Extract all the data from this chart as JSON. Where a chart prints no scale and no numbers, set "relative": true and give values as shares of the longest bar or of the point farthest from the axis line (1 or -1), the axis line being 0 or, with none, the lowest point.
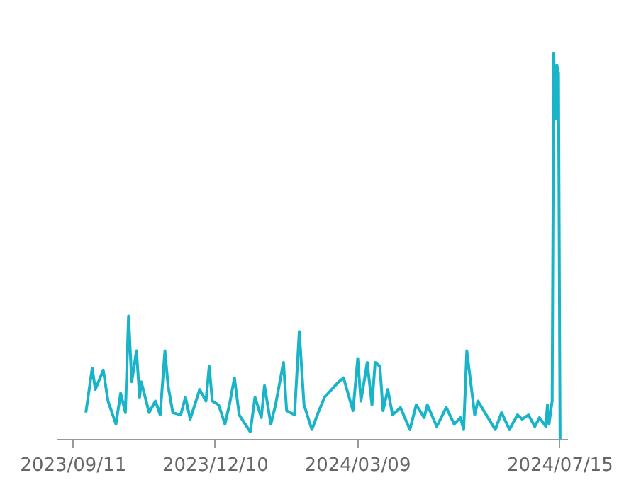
{
  "chart_data": {
    "type": "line",
    "relative": true,
    "color": "#19b4c8",
    "xlim": [
      "2023-09-01",
      "2024-07-20"
    ],
    "xticks": [
      {
        "value": "2023-09-11",
        "label": "2023/09/11"
      },
      {
        "value": "2023-12-10",
        "label": "2023/12/10"
      },
      {
        "value": "2024-03-09",
        "label": "2024/03/09"
      },
      {
        "value": "2024-07-15",
        "label": "2024/07/15"
      }
    ],
    "x": [
      "2023-09-19",
      "2023-09-23",
      "2023-09-25",
      "2023-09-30",
      "2023-10-03",
      "2023-10-08",
      "2023-10-11",
      "2023-10-14",
      "2023-10-16",
      "2023-10-18",
      "2023-10-21",
      "2023-10-23",
      "2023-10-24",
      "2023-10-29",
      "2023-11-02",
      "2023-11-05",
      "2023-11-08",
      "2023-11-10",
      "2023-11-13",
      "2023-11-18",
      "2023-11-21",
      "2023-11-24",
      "2023-11-30",
      "2023-12-04",
      "2023-12-06",
      "2023-12-08",
      "2023-12-12",
      "2023-12-16",
      "2023-12-19",
      "2023-12-22",
      "2023-12-25",
      "2024-01-01",
      "2024-01-04",
      "2024-01-08",
      "2024-01-10",
      "2024-01-14",
      "2024-01-17",
      "2024-01-22",
      "2024-01-24",
      "2024-01-29",
      "2024-02-01",
      "2024-02-04",
      "2024-02-09",
      "2024-02-13",
      "2024-02-17",
      "2024-02-26",
      "2024-02-29",
      "2024-03-06",
      "2024-03-09",
      "2024-03-11",
      "2024-03-15",
      "2024-03-18",
      "2024-03-20",
      "2024-03-23",
      "2024-03-25",
      "2024-03-28",
      "2024-03-31",
      "2024-04-05",
      "2024-04-11",
      "2024-04-15",
      "2024-04-20",
      "2024-04-22",
      "2024-04-28",
      "2024-05-04",
      "2024-05-09",
      "2024-05-13",
      "2024-05-15",
      "2024-05-17",
      "2024-05-22",
      "2024-05-24",
      "2024-05-31",
      "2024-06-04",
      "2024-06-08",
      "2024-06-13",
      "2024-06-18",
      "2024-06-21",
      "2024-06-25",
      "2024-06-29",
      "2024-07-02",
      "2024-07-06",
      "2024-07-07",
      "2024-07-08",
      "2024-07-10",
      "2024-07-11",
      "2024-07-12",
      "2024-07-13",
      "2024-07-14",
      "2024-07-15"
    ],
    "values": [
      0.07,
      0.185,
      0.13,
      0.18,
      0.1,
      0.04,
      0.12,
      0.07,
      0.32,
      0.15,
      0.23,
      0.11,
      0.15,
      0.07,
      0.1,
      0.064,
      0.23,
      0.14,
      0.07,
      0.064,
      0.11,
      0.053,
      0.13,
      0.1,
      0.19,
      0.1,
      0.09,
      0.04,
      0.094,
      0.16,
      0.064,
      0.02,
      0.11,
      0.057,
      0.14,
      0.04,
      0.09,
      0.2,
      0.075,
      0.064,
      0.28,
      0.09,
      0.026,
      0.07,
      0.11,
      0.15,
      0.16,
      0.075,
      0.21,
      0.1,
      0.2,
      0.09,
      0.2,
      0.19,
      0.075,
      0.13,
      0.064,
      0.083,
      0.026,
      0.09,
      0.057,
      0.09,
      0.034,
      0.083,
      0.04,
      0.057,
      0.026,
      0.23,
      0.064,
      0.1,
      0.053,
      0.026,
      0.07,
      0.026,
      0.064,
      0.053,
      0.064,
      0.034,
      0.057,
      0.034,
      0.09,
      0.04,
      0.1,
      1.0,
      0.83,
      0.97,
      0.95,
      0
    ]
  }
}
